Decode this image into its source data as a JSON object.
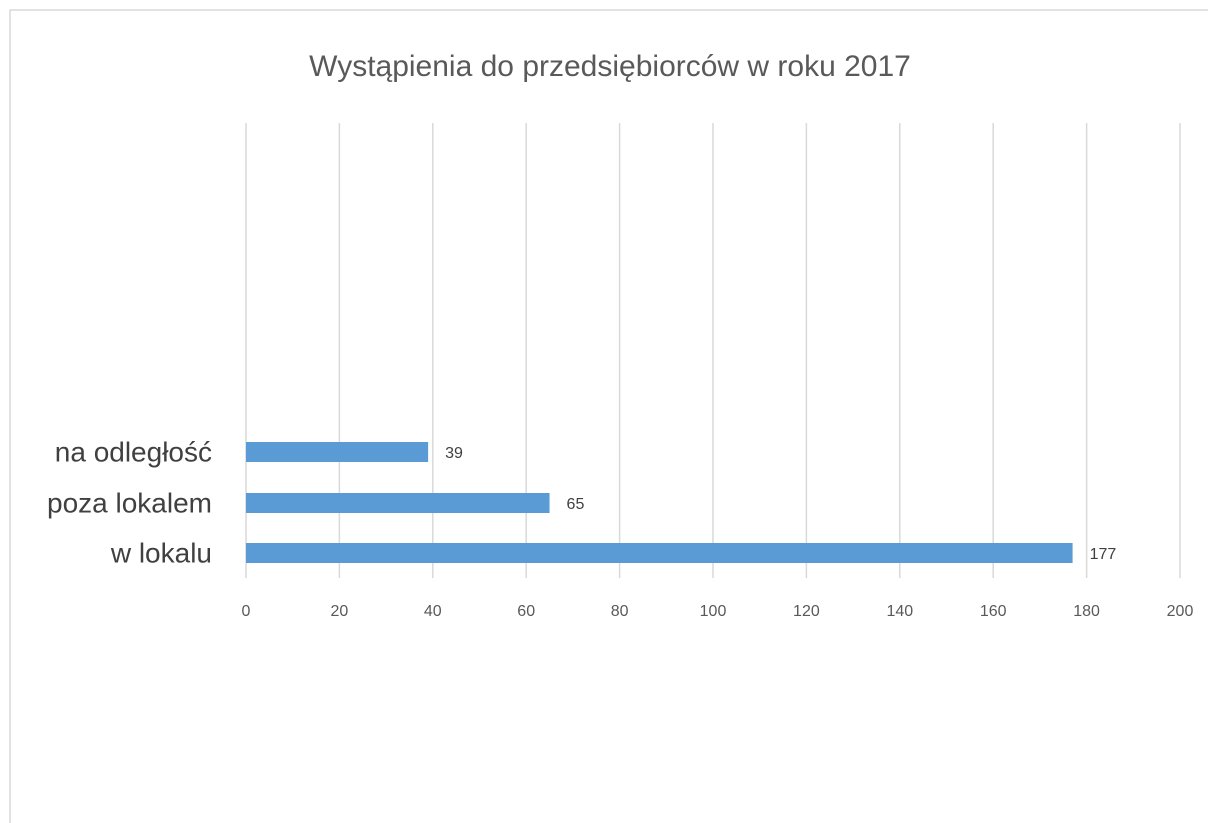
{
  "chart_data": {
    "type": "hbar",
    "title": "Wystąpienia do przedsiębiorców  w roku 2017",
    "categories": [
      "na odległość",
      "poza lokalem",
      "w lokalu"
    ],
    "values": [
      39,
      65,
      177
    ],
    "color": "#5b9bd5",
    "xlim": [
      0,
      200
    ],
    "xticks": [
      0,
      20,
      40,
      60,
      80,
      100,
      120,
      140,
      160,
      180,
      200
    ],
    "grid": true
  }
}
